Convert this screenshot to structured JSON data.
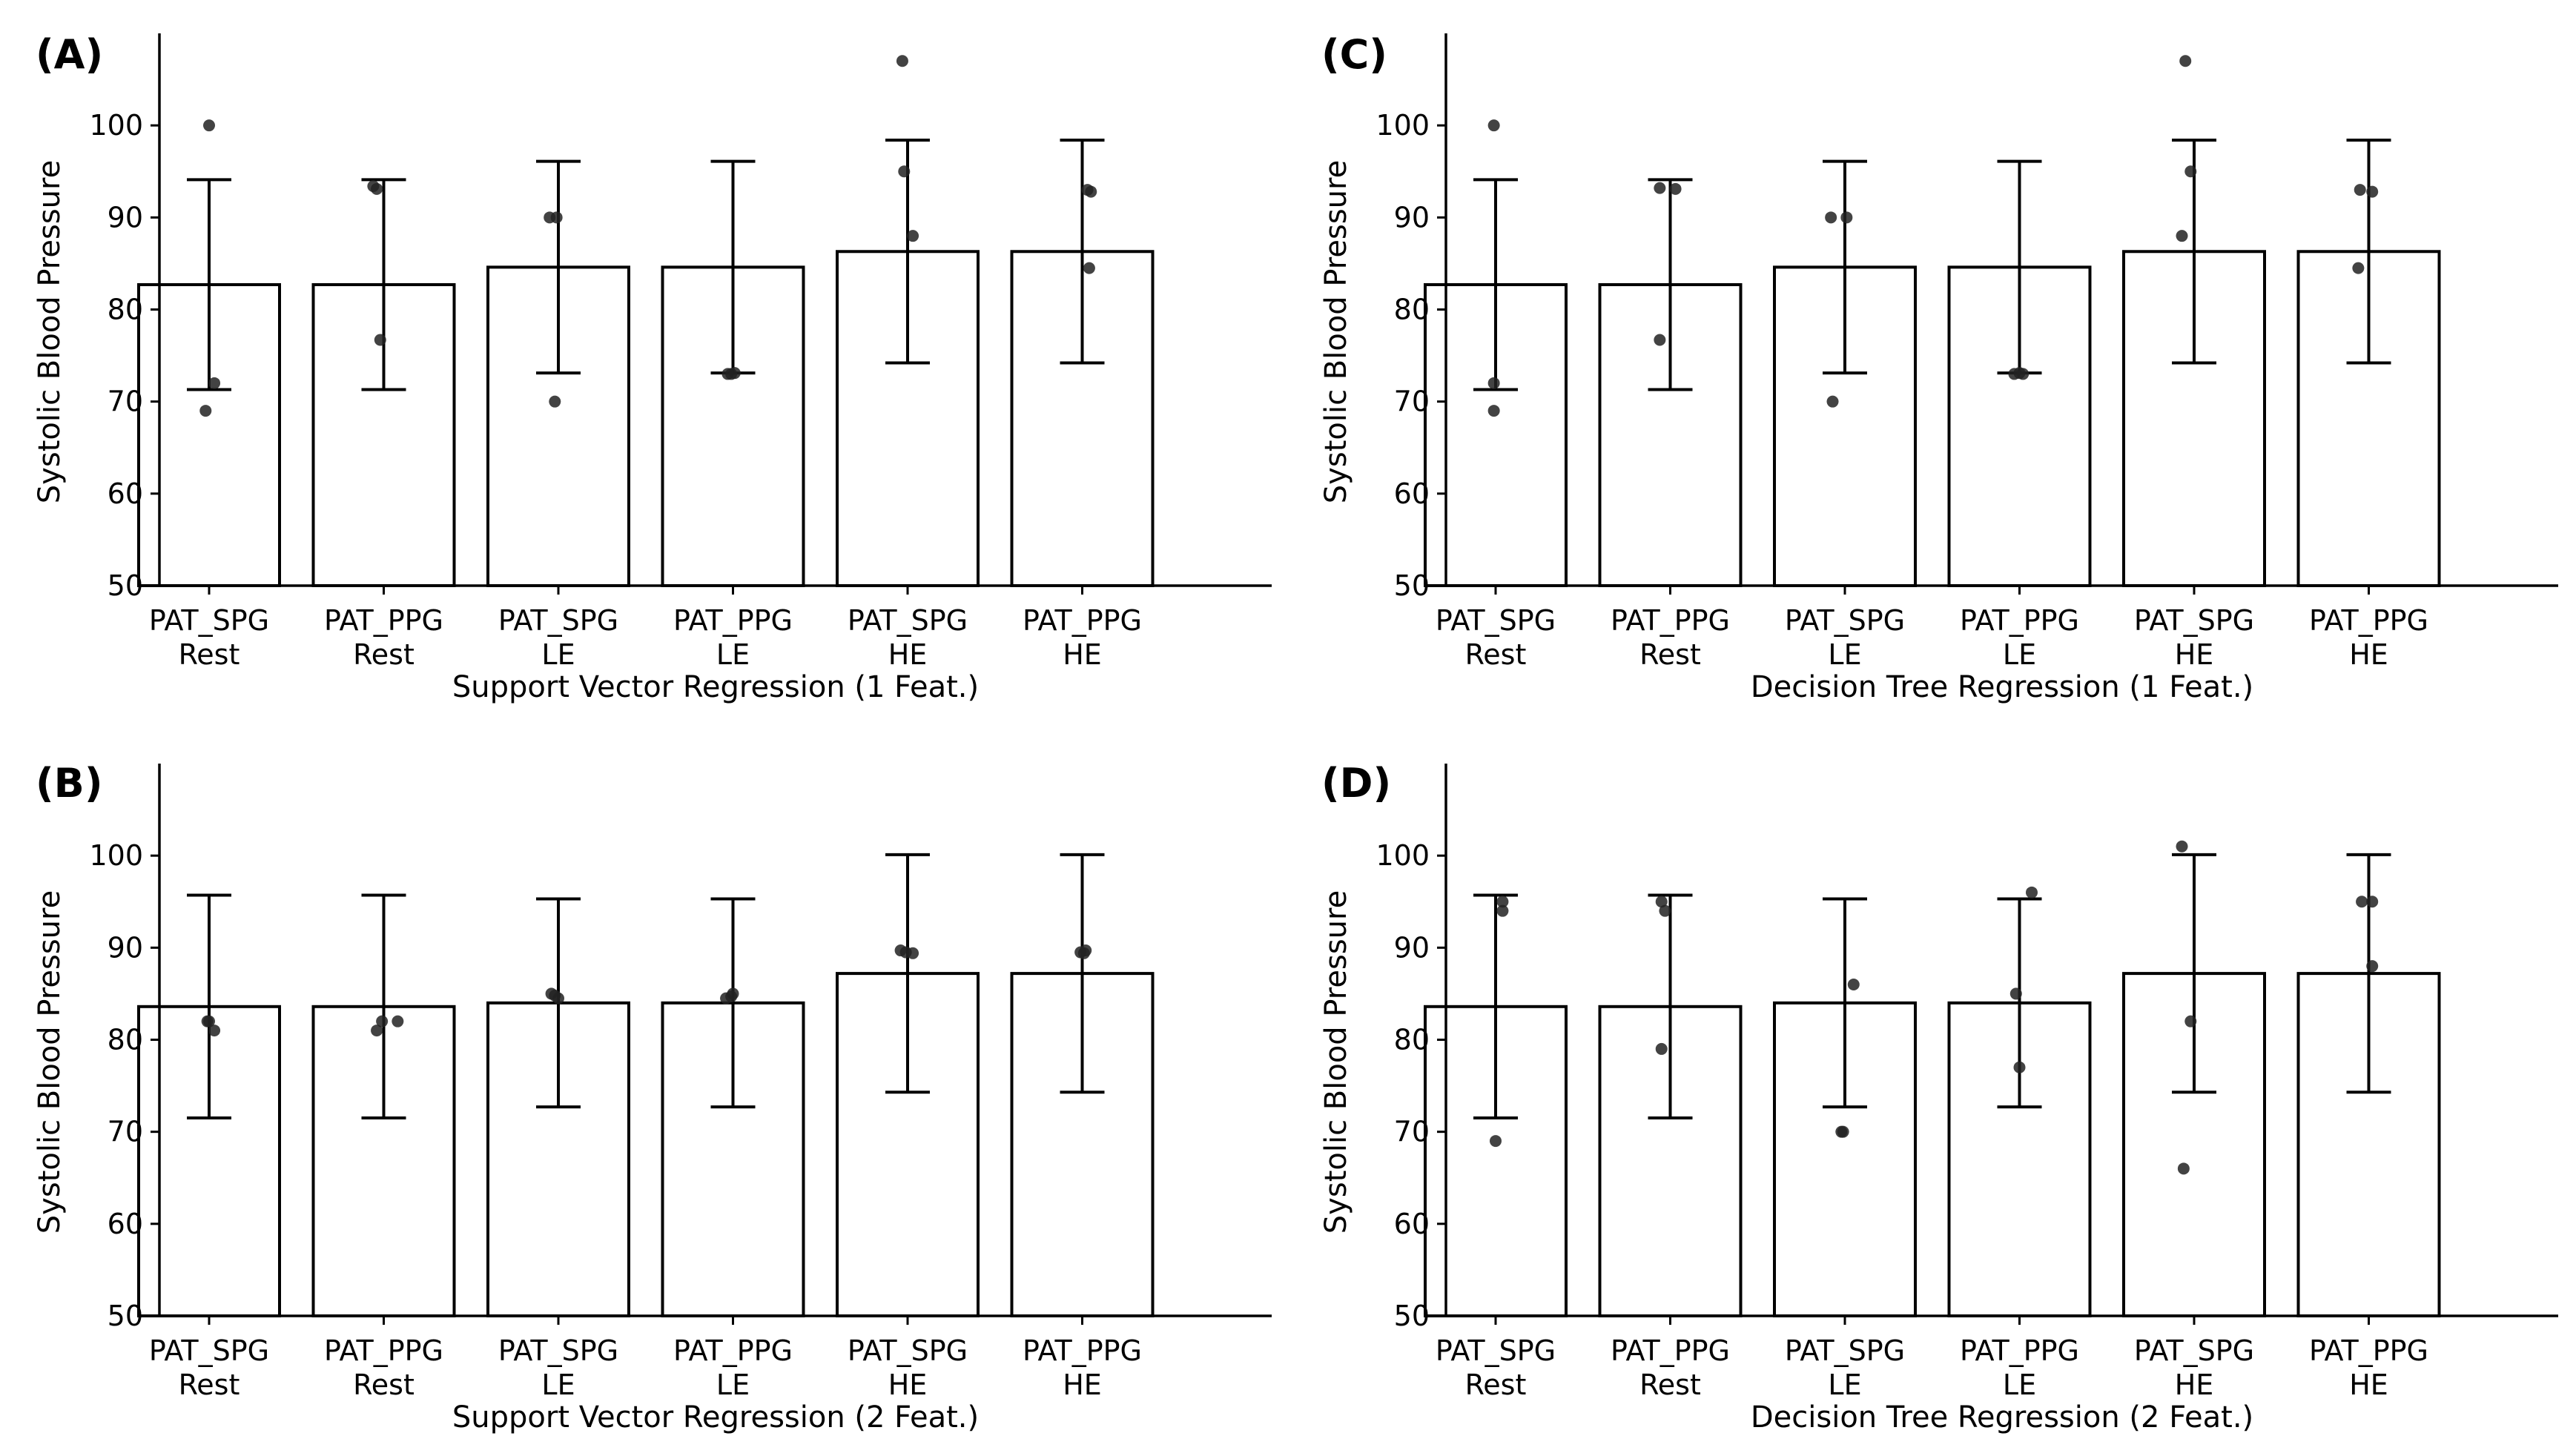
{
  "figure": {
    "background": "#ffffff",
    "bar_fill": "#ffffff",
    "edge_color": "#000000",
    "point_color": "#222222"
  },
  "chart_data": [
    {
      "panel_label": "(A)",
      "type": "bar",
      "title": "",
      "xlabel": "Support Vector Regression (1 Feat.)",
      "ylabel": "Systolic Blood Pressure",
      "ylim": [
        50,
        110
      ],
      "yticks": [
        50,
        60,
        70,
        80,
        90,
        100
      ],
      "categories": [
        [
          "PAT_SPG",
          "Rest"
        ],
        [
          "PAT_PPG",
          "Rest"
        ],
        [
          "PAT_SPG",
          "LE"
        ],
        [
          "PAT_PPG",
          "LE"
        ],
        [
          "PAT_SPG",
          "HE"
        ],
        [
          "PAT_PPG",
          "HE"
        ]
      ],
      "values": [
        82.7,
        82.7,
        84.6,
        84.6,
        86.3,
        86.3
      ],
      "error": [
        11.4,
        11.4,
        11.5,
        11.5,
        12.1,
        12.1
      ],
      "points": [
        [
          100,
          72,
          69
        ],
        [
          93.4,
          93.1,
          76.7
        ],
        [
          90,
          90,
          70
        ],
        [
          73,
          73,
          73.1
        ],
        [
          107,
          95,
          88
        ],
        [
          93,
          92.8,
          84.5
        ]
      ],
      "jitter": [
        [
          0,
          0.03,
          -0.02
        ],
        [
          -0.06,
          -0.04,
          -0.02
        ],
        [
          -0.05,
          -0.01,
          -0.02
        ],
        [
          -0.03,
          -0.01,
          0.01
        ],
        [
          -0.03,
          -0.02,
          0.03
        ],
        [
          0.03,
          0.05,
          0.04
        ]
      ]
    },
    {
      "panel_label": "(B)",
      "type": "bar",
      "title": "",
      "xlabel": "Support Vector Regression (2 Feat.)",
      "ylabel": "Systolic Blood Pressure",
      "ylim": [
        50,
        110
      ],
      "yticks": [
        50,
        60,
        70,
        80,
        90,
        100
      ],
      "categories": [
        [
          "PAT_SPG",
          "Rest"
        ],
        [
          "PAT_PPG",
          "Rest"
        ],
        [
          "PAT_SPG",
          "LE"
        ],
        [
          "PAT_PPG",
          "LE"
        ],
        [
          "PAT_SPG",
          "HE"
        ],
        [
          "PAT_PPG",
          "HE"
        ]
      ],
      "values": [
        83.6,
        83.6,
        84.0,
        84.0,
        87.2,
        87.2
      ],
      "error": [
        12.1,
        12.1,
        11.3,
        11.3,
        12.9,
        12.9
      ],
      "points": [
        [
          82,
          81,
          82
        ],
        [
          81,
          82,
          82
        ],
        [
          85,
          84.5,
          84.8
        ],
        [
          84.5,
          85,
          84.7
        ],
        [
          89.7,
          89.4,
          89.5
        ],
        [
          89.5,
          89.4,
          89.7
        ]
      ],
      "jitter": [
        [
          -0.01,
          0.03,
          0.0
        ],
        [
          -0.04,
          -0.01,
          0.08
        ],
        [
          -0.04,
          0.0,
          -0.02
        ],
        [
          -0.04,
          0.0,
          -0.01
        ],
        [
          -0.04,
          0.03,
          -0.01
        ],
        [
          -0.01,
          0.01,
          0.02
        ]
      ]
    },
    {
      "panel_label": "(C)",
      "type": "bar",
      "title": "",
      "xlabel": "Decision Tree Regression (1 Feat.)",
      "ylabel": "Systolic Blood Pressure",
      "ylim": [
        50,
        110
      ],
      "yticks": [
        50,
        60,
        70,
        80,
        90,
        100
      ],
      "categories": [
        [
          "PAT_SPG",
          "Rest"
        ],
        [
          "PAT_PPG",
          "Rest"
        ],
        [
          "PAT_SPG",
          "LE"
        ],
        [
          "PAT_PPG",
          "LE"
        ],
        [
          "PAT_SPG",
          "HE"
        ],
        [
          "PAT_PPG",
          "HE"
        ]
      ],
      "values": [
        82.7,
        82.7,
        84.6,
        84.6,
        86.3,
        86.3
      ],
      "error": [
        11.4,
        11.4,
        11.5,
        11.5,
        12.1,
        12.1
      ],
      "points": [
        [
          100,
          72,
          69
        ],
        [
          93.2,
          93.1,
          76.7
        ],
        [
          90,
          90,
          70
        ],
        [
          73,
          73,
          73.1
        ],
        [
          107,
          95,
          88
        ],
        [
          93,
          92.8,
          84.5
        ]
      ],
      "jitter": [
        [
          -0.01,
          -0.01,
          -0.01
        ],
        [
          -0.06,
          0.03,
          -0.06
        ],
        [
          -0.08,
          0.01,
          -0.07
        ],
        [
          -0.03,
          0.02,
          0.0
        ],
        [
          -0.05,
          -0.02,
          -0.07
        ],
        [
          -0.05,
          0.02,
          -0.06
        ]
      ]
    },
    {
      "panel_label": "(D)",
      "type": "bar",
      "title": "",
      "xlabel": "Decision Tree Regression (2 Feat.)",
      "ylabel": "Systolic Blood Pressure",
      "ylim": [
        50,
        110
      ],
      "yticks": [
        50,
        60,
        70,
        80,
        90,
        100
      ],
      "categories": [
        [
          "PAT_SPG",
          "Rest"
        ],
        [
          "PAT_PPG",
          "Rest"
        ],
        [
          "PAT_SPG",
          "LE"
        ],
        [
          "PAT_PPG",
          "LE"
        ],
        [
          "PAT_SPG",
          "HE"
        ],
        [
          "PAT_PPG",
          "HE"
        ]
      ],
      "values": [
        83.6,
        83.6,
        84.0,
        84.0,
        87.2,
        87.2
      ],
      "error": [
        12.1,
        12.1,
        11.3,
        11.3,
        12.9,
        12.9
      ],
      "points": [
        [
          95,
          94,
          69
        ],
        [
          95,
          94,
          79
        ],
        [
          86,
          70,
          70
        ],
        [
          96,
          85,
          77
        ],
        [
          101,
          82,
          66
        ],
        [
          95,
          95,
          88
        ]
      ],
      "jitter": [
        [
          0.04,
          0.04,
          0.0
        ],
        [
          -0.05,
          -0.03,
          -0.05
        ],
        [
          0.05,
          -0.02,
          -0.01
        ],
        [
          0.07,
          -0.02,
          0.0
        ],
        [
          -0.07,
          -0.02,
          -0.06
        ],
        [
          -0.04,
          0.02,
          0.02
        ]
      ]
    }
  ]
}
